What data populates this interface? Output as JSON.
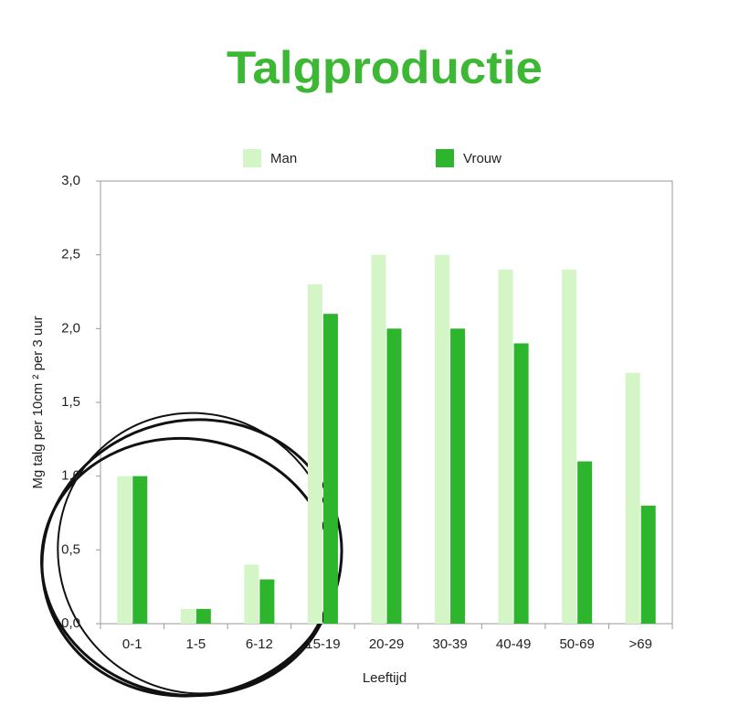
{
  "chart_data": {
    "type": "bar",
    "title": "Talgproductie",
    "x_label": "Leeftijd",
    "y_label": "Mg talg per 10cm ² per 3 uur",
    "categories": [
      "0-1",
      "1-5",
      "6-12",
      "15-19",
      "20-29",
      "30-39",
      "40-49",
      "50-69",
      ">69"
    ],
    "series": [
      {
        "name": "Man",
        "color": "#d4f5c6",
        "values": [
          1.0,
          0.1,
          0.4,
          2.3,
          2.5,
          2.5,
          2.4,
          2.4,
          1.7
        ]
      },
      {
        "name": "Vrouw",
        "color": "#2db52d",
        "values": [
          1.0,
          0.1,
          0.3,
          2.1,
          2.0,
          2.0,
          1.9,
          1.1,
          0.8
        ]
      }
    ],
    "ylim": [
      0,
      3
    ],
    "yticks": [
      {
        "value": 0,
        "label": "0,0"
      },
      {
        "value": 0.5,
        "label": "0,5"
      },
      {
        "value": 1,
        "label": "1,0"
      },
      {
        "value": 1.5,
        "label": "1,5"
      },
      {
        "value": 2,
        "label": "2,0"
      },
      {
        "value": 2.5,
        "label": "2,5"
      },
      {
        "value": 3,
        "label": "3,0"
      }
    ],
    "grid": false
  }
}
